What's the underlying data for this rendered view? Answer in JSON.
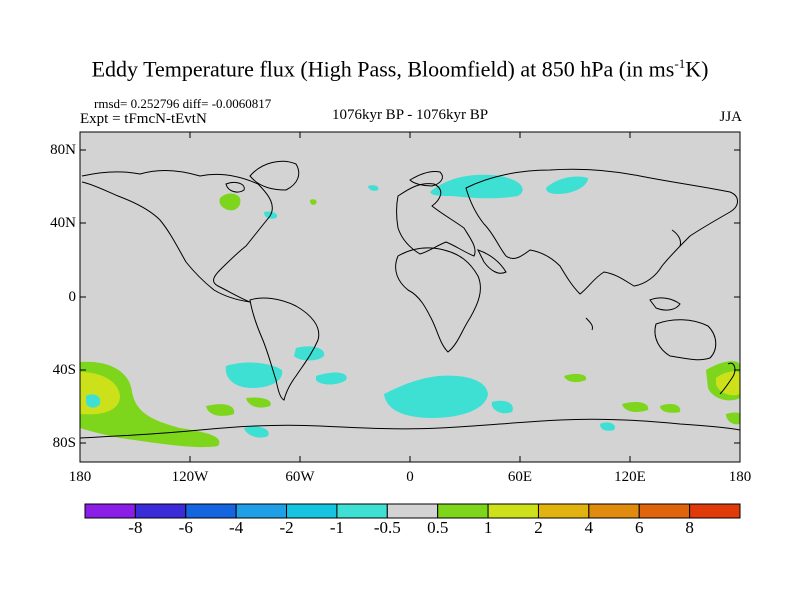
{
  "title": {
    "text": "Eddy Temperature flux (High Pass, Bloomfield) at 850 hPa (in ms",
    "superscript": "-1",
    "suffix": "K)"
  },
  "stats": "rmsd= 0.252796 diff= -0.0060817",
  "experiment": "Expt = tFmcN-tEvtN",
  "period": "1076kyr BP - 1076kyr BP",
  "season": "JJA",
  "map": {
    "background_color": "#d3d3d3",
    "lat_labels": [
      "80N",
      "40N",
      "0",
      "40S",
      "80S"
    ],
    "lon_labels": [
      "180",
      "120W",
      "60W",
      "0",
      "60E",
      "120E",
      "180"
    ]
  },
  "colorbar": {
    "labels": [
      "-8",
      "-6",
      "-4",
      "-2",
      "-1",
      "-0.5",
      "0.5",
      "1",
      "2",
      "4",
      "6",
      "8"
    ],
    "colors": [
      "#8a1ee6",
      "#3a2cd9",
      "#1565e0",
      "#1fa0e6",
      "#17c4e0",
      "#3ee0d4",
      "#d3d3d3",
      "#7ed61c",
      "#cde11a",
      "#e2b310",
      "#e08a0e",
      "#e0640c",
      "#e03a0a"
    ]
  }
}
